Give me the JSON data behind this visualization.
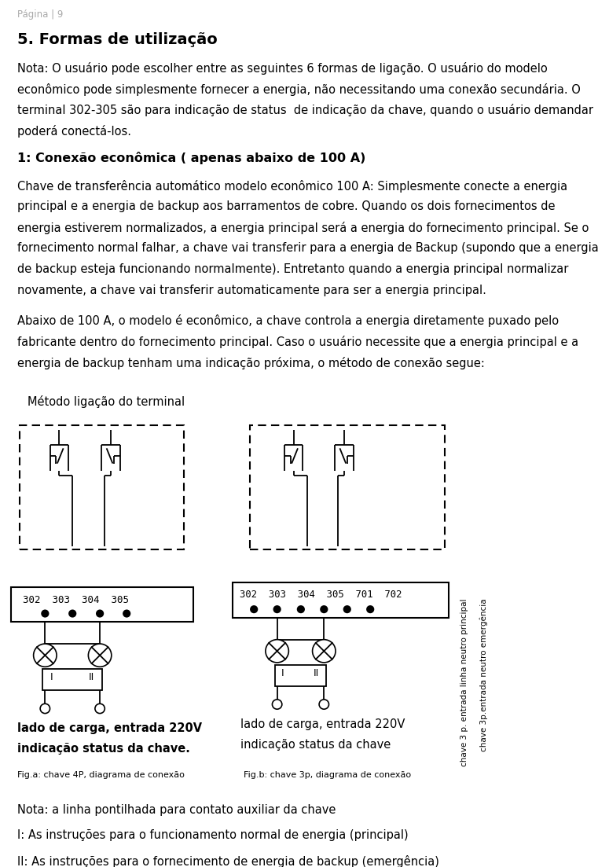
{
  "page_header": "Página | 9",
  "section_title": "5. Formas de utilização",
  "paragraph1": "Nota: O usuário pode escolher entre as seguintes 6 formas de ligação. O usuário do modelo\neconômico pode simplesmente fornecer a energia, não necessitando uma conexão secundária. O\nterminal 302-305 são para indicação de status  de indicação da chave, quando o usuário demandar\npoderá conectá-los.",
  "subsection_title": "1: Conexão econômica ( apenas abaixo de 100 A)",
  "paragraph2": "Chave de transferência automático modelo econômico 100 A: Simplesmente conecte a energia\nprincipal e a energia de backup aos barramentos de cobre. Quando os dois fornecimentos de\nenergia estiverem normalizados, a energia principal será a energia do fornecimento principal. Se o\nfornecimento normal falhar, a chave vai transferir para a energia de Backup (supondo que a energia\nde backup esteja funcionando normalmente). Entretanto quando a energia principal normalizar\nnovamente, a chave vai transferir automaticamente para ser a energia principal.",
  "paragraph3": "Abaixo de 100 A, o modelo é econômico, a chave controla a energia diretamente puxado pelo\nfabricante dentro do fornecimento principal. Caso o usuário necessite que a energia principal e a\nenergia de backup tenham uma indicação próxima, o método de conexão segue:",
  "diagram_label": "Método ligação do terminal",
  "fig_a_label": "Fig.a: chave 4P, diagrama de conexão",
  "fig_b_label": "Fig.b: chave 3p, diagrama de conexão",
  "fig_a_caption1": "lado de carga, entrada 220V",
  "fig_a_caption2": "indicação status da chave.",
  "fig_b_caption1": "lado de carga, entrada 220V",
  "fig_b_caption2": "indicação status da chave",
  "fig_b_rotated1": "chave 3 p. entrada linha neutro principal",
  "fig_b_rotated2": "chave 3p.entrada neutro emergência",
  "note1": "Nota: a linha pontilhada para contato auxiliar da chave",
  "note2": "I: As instruções para o funcionamento normal de energia (principal)",
  "note3": "II: As instruções para o fornecimento de energia de backup (emergência)",
  "terminals_a": "302  303  304  305",
  "terminals_b": "302  303  304  305  701  702",
  "bg_color": "#ffffff",
  "text_color": "#000000",
  "header_color": "#aaaaaa",
  "lw_main": 1.5,
  "lw_thin": 1.0
}
